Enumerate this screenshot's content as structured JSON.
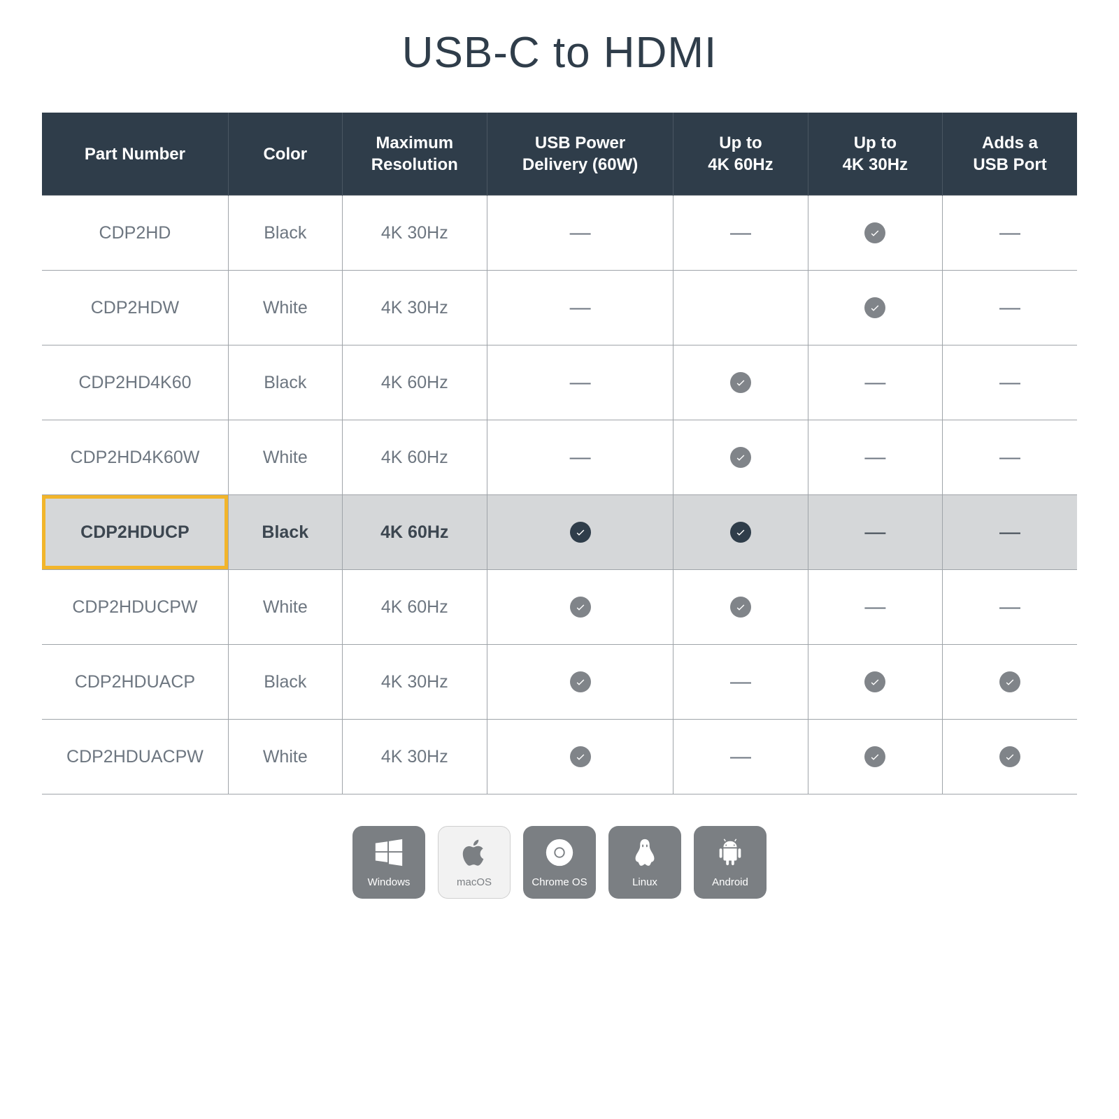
{
  "title": "USB-C to HDMI",
  "colors": {
    "header_bg": "#2f3d4a",
    "header_text": "#ffffff",
    "cell_text": "#6d7680",
    "border": "#9fa4a9",
    "highlight_bg": "#d5d7d9",
    "highlight_border": "#f2b52b",
    "highlight_text": "#3c4650",
    "check_gray": "#808489",
    "check_dark": "#2f3d4a",
    "os_dark_bg": "#7b7f83",
    "os_light_bg": "#f2f2f2"
  },
  "columns": [
    "Part Number",
    "Color",
    "Maximum Resolution",
    "USB Power Delivery (60W)",
    "Up to 4K 60Hz",
    "Up to 4K 30Hz",
    "Adds a USB Port"
  ],
  "rows": [
    {
      "part": "CDP2HD",
      "color": "Black",
      "res": "4K 30Hz",
      "pd": "dash",
      "k60": "dash",
      "k30": "check",
      "usb": "dash",
      "highlight": false
    },
    {
      "part": "CDP2HDW",
      "color": "White",
      "res": "4K 30Hz",
      "pd": "dash",
      "k60": "blank",
      "k30": "check",
      "usb": "dash",
      "highlight": false
    },
    {
      "part": "CDP2HD4K60",
      "color": "Black",
      "res": "4K 60Hz",
      "pd": "dash",
      "k60": "check",
      "k30": "dash",
      "usb": "dash",
      "highlight": false
    },
    {
      "part": "CDP2HD4K60W",
      "color": "White",
      "res": "4K 60Hz",
      "pd": "dash",
      "k60": "check",
      "k30": "dash",
      "usb": "dash",
      "highlight": false
    },
    {
      "part": "CDP2HDUCP",
      "color": "Black",
      "res": "4K 60Hz",
      "pd": "check",
      "k60": "check",
      "k30": "dash",
      "usb": "dash",
      "highlight": true
    },
    {
      "part": "CDP2HDUCPW",
      "color": "White",
      "res": "4K 60Hz",
      "pd": "check",
      "k60": "check",
      "k30": "dash",
      "usb": "dash",
      "highlight": false
    },
    {
      "part": "CDP2HDUACP",
      "color": "Black",
      "res": "4K 30Hz",
      "pd": "check",
      "k60": "dash",
      "k30": "check",
      "usb": "check",
      "highlight": false
    },
    {
      "part": "CDP2HDUACPW",
      "color": "White",
      "res": "4K 30Hz",
      "pd": "check",
      "k60": "dash",
      "k30": "check",
      "usb": "check",
      "highlight": false
    }
  ],
  "os_badges": [
    {
      "label": "Windows",
      "style": "dark",
      "icon": "windows"
    },
    {
      "label": "macOS",
      "style": "light",
      "icon": "apple"
    },
    {
      "label": "Chrome OS",
      "style": "dark",
      "icon": "chrome"
    },
    {
      "label": "Linux",
      "style": "dark",
      "icon": "linux"
    },
    {
      "label": "Android",
      "style": "dark",
      "icon": "android"
    }
  ]
}
